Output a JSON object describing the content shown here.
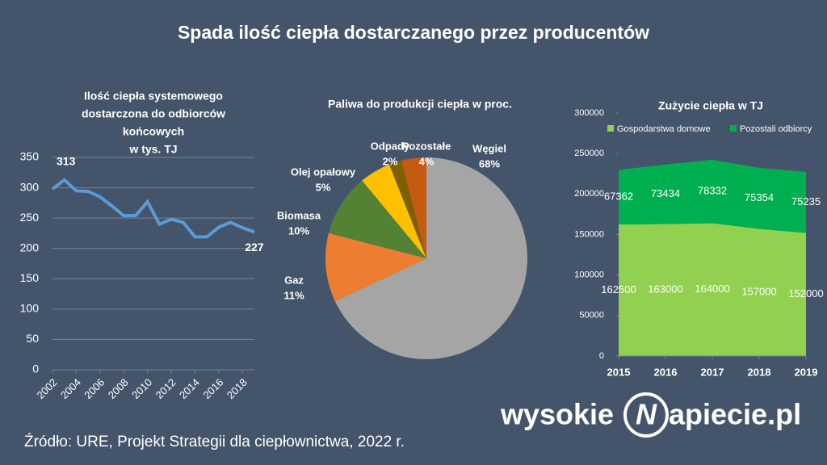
{
  "title": "Spada ilość ciepła dostarczanego przez producentów",
  "source": "Źródło: URE, Projekt Strategii dla ciepłownictwa, 2022 r.",
  "logo": {
    "before": "wysokie",
    "letter": "N",
    "after": "apiecie.pl"
  },
  "chart_data": [
    {
      "type": "line",
      "title": [
        "Ilość ciepła systemowego",
        "dostarczona do odbiorców",
        "końcowych",
        "w tys. TJ"
      ],
      "x": [
        2002,
        2003,
        2004,
        2005,
        2006,
        2007,
        2008,
        2009,
        2010,
        2011,
        2012,
        2013,
        2014,
        2015,
        2016,
        2017,
        2018,
        2019
      ],
      "values": [
        298,
        313,
        295,
        294,
        285,
        270,
        254,
        254,
        277,
        240,
        248,
        243,
        219,
        219,
        235,
        243,
        234,
        227
      ],
      "value_labels": [
        null,
        "313",
        null,
        null,
        null,
        null,
        null,
        null,
        null,
        null,
        null,
        null,
        null,
        null,
        null,
        null,
        null,
        "227"
      ],
      "color": "#5b9bd5",
      "xlim": [
        2002,
        2019
      ],
      "xticks": [
        2002,
        2004,
        2006,
        2008,
        2010,
        2012,
        2014,
        2016,
        2018
      ],
      "ylim": [
        0,
        350
      ],
      "yticks": [
        0,
        50,
        100,
        150,
        200,
        250,
        300,
        350
      ],
      "grid": true
    },
    {
      "type": "pie",
      "title": "Paliwa do produkcji ciepła w proc.",
      "categories": [
        "Węgiel",
        "Gaz",
        "Biomasa",
        "Olej opałowy",
        "Odpady",
        "Pozostałe"
      ],
      "values": [
        68,
        11,
        10,
        5,
        2,
        4
      ],
      "value_labels": [
        "68%",
        "11%",
        "10%",
        "5%",
        "2%",
        "4%"
      ],
      "colors": [
        "#a5a5a5",
        "#ed7d31",
        "#548235",
        "#ffc000",
        "#7f6000",
        "#c55a11"
      ]
    },
    {
      "type": "stacked-area",
      "title": "Zużycie ciepła w TJ",
      "x": [
        2015,
        2016,
        2017,
        2018,
        2019
      ],
      "series": [
        {
          "name": "Gospodarstwa domowe",
          "color": "#92d050",
          "values": [
            162500,
            163000,
            164000,
            157000,
            152000
          ]
        },
        {
          "name": "Pozostali odbiorcy",
          "color": "#00b050",
          "values": [
            67362,
            73434,
            78332,
            75354,
            75235
          ]
        }
      ],
      "xlim": [
        2015,
        2019
      ],
      "xticks": [
        2015,
        2016,
        2017,
        2018,
        2019
      ],
      "ylim": [
        0,
        300000
      ],
      "yticks": [
        0,
        50000,
        100000,
        150000,
        200000,
        250000,
        300000
      ],
      "legend": "top"
    }
  ]
}
